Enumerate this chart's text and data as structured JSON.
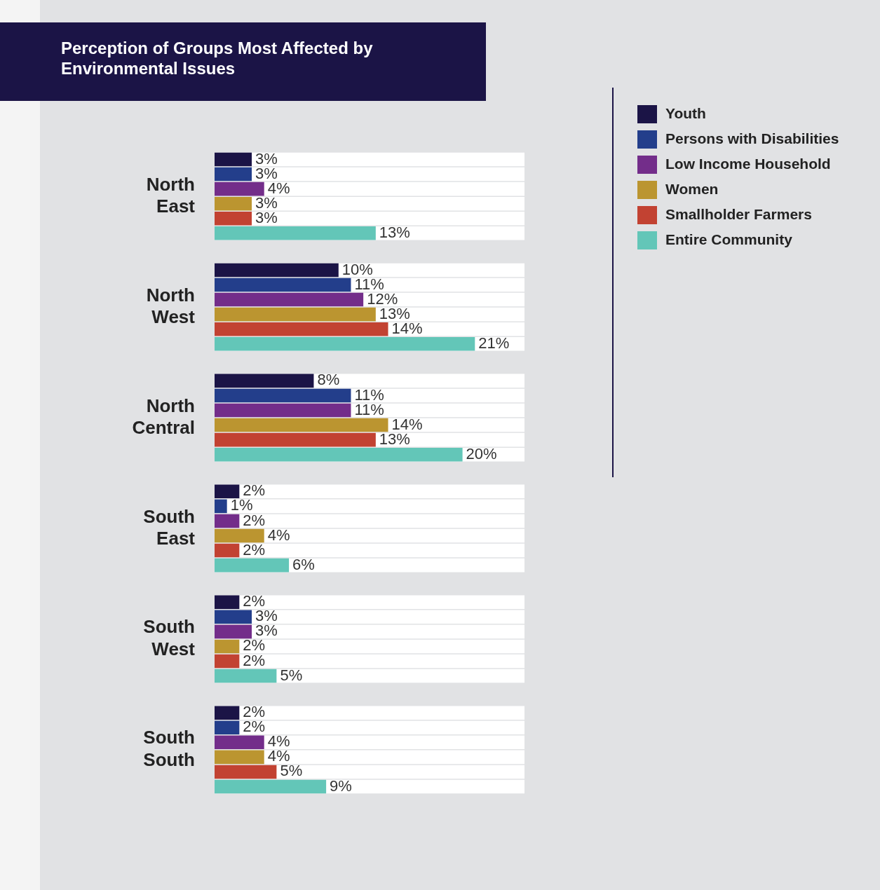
{
  "chart_data": {
    "type": "bar",
    "orientation": "horizontal",
    "title": "Perception of Groups Most Affected by Environmental Issues",
    "categories": [
      "North East",
      "North West",
      "North Central",
      "South East",
      "South West",
      "South South"
    ],
    "series": [
      {
        "name": "Youth",
        "color": "#1b1446",
        "values": [
          3,
          10,
          8,
          2,
          2,
          2
        ],
        "value_labels": [
          "3%",
          "10%",
          "8%",
          "2%",
          "2%",
          "2%"
        ]
      },
      {
        "name": "Persons with Disabilities",
        "color": "#233e8b",
        "values": [
          3,
          11,
          11,
          1,
          3,
          2
        ],
        "value_labels": [
          "3%",
          "11%",
          "11%",
          "1%",
          "3%",
          "2%"
        ]
      },
      {
        "name": "Low Income Household",
        "color": "#732d8a",
        "values": [
          4,
          12,
          11,
          2,
          3,
          4
        ],
        "value_labels": [
          "4%",
          "12%",
          "11%",
          "2%",
          "3%",
          "4%"
        ]
      },
      {
        "name": "Women",
        "color": "#bb9530",
        "values": [
          3,
          13,
          14,
          4,
          2,
          4
        ],
        "value_labels": [
          "3%",
          "13%",
          "14%",
          "4%",
          "2%",
          "4%"
        ]
      },
      {
        "name": "Smallholder Farmers",
        "color": "#c24232",
        "values": [
          3,
          14,
          13,
          2,
          2,
          5
        ],
        "value_labels": [
          "3%",
          "14%",
          "13%",
          "2%",
          "2%",
          "5%"
        ]
      },
      {
        "name": "Entire Community",
        "color": "#63c6b8",
        "values": [
          13,
          21,
          20,
          6,
          5,
          9
        ],
        "value_labels": [
          "13%",
          "21%",
          "20%",
          "6%",
          "5%",
          "9%"
        ]
      }
    ],
    "tick_labels": "y",
    "legend": "right"
  }
}
